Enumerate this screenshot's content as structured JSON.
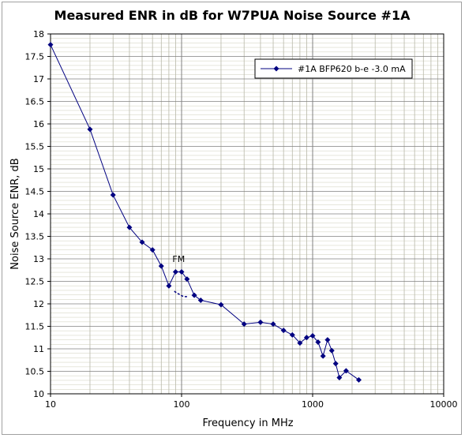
{
  "chart_data": {
    "type": "line",
    "title": "Measured ENR in dB for W7PUA Noise Source #1A",
    "xlabel": "Frequency in MHz",
    "ylabel": "Noise Source ENR, dB",
    "xscale": "log",
    "xlim": [
      10,
      10000
    ],
    "ylim": [
      10,
      18
    ],
    "x_ticks": [
      "10",
      "100",
      "1000",
      "10000"
    ],
    "y_ticks": [
      "10",
      "10.5",
      "11",
      "11.5",
      "12",
      "12.5",
      "13",
      "13.5",
      "14",
      "14.5",
      "15",
      "15.5",
      "16",
      "16.5",
      "17",
      "17.5",
      "18"
    ],
    "grid": true,
    "legend_position": "top-right",
    "series": [
      {
        "name": "#1A BFP620 b-e  -3.0 mA",
        "color": "#000080",
        "marker": "diamond",
        "x": [
          10,
          20,
          30,
          40,
          50,
          60,
          70,
          80,
          90,
          100,
          110,
          125,
          140,
          200,
          300,
          400,
          500,
          600,
          700,
          800,
          900,
          1000,
          1100,
          1200,
          1300,
          1400,
          1500,
          1600,
          1800,
          2250
        ],
        "y": [
          17.76,
          15.88,
          14.42,
          13.7,
          13.37,
          13.2,
          12.84,
          12.4,
          12.71,
          12.71,
          12.55,
          12.19,
          12.08,
          11.98,
          11.55,
          11.59,
          11.55,
          11.41,
          11.31,
          11.13,
          11.25,
          11.29,
          11.15,
          10.84,
          11.2,
          10.96,
          10.67,
          10.36,
          10.51,
          10.31
        ]
      }
    ],
    "annotations": [
      {
        "text": "FM",
        "x": 95,
        "y": 13.0
      }
    ],
    "fm_dashed_segment": {
      "x": [
        88,
        90,
        95,
        100,
        105,
        110
      ],
      "y": [
        12.28,
        12.26,
        12.22,
        12.18,
        12.16,
        12.16
      ]
    }
  }
}
